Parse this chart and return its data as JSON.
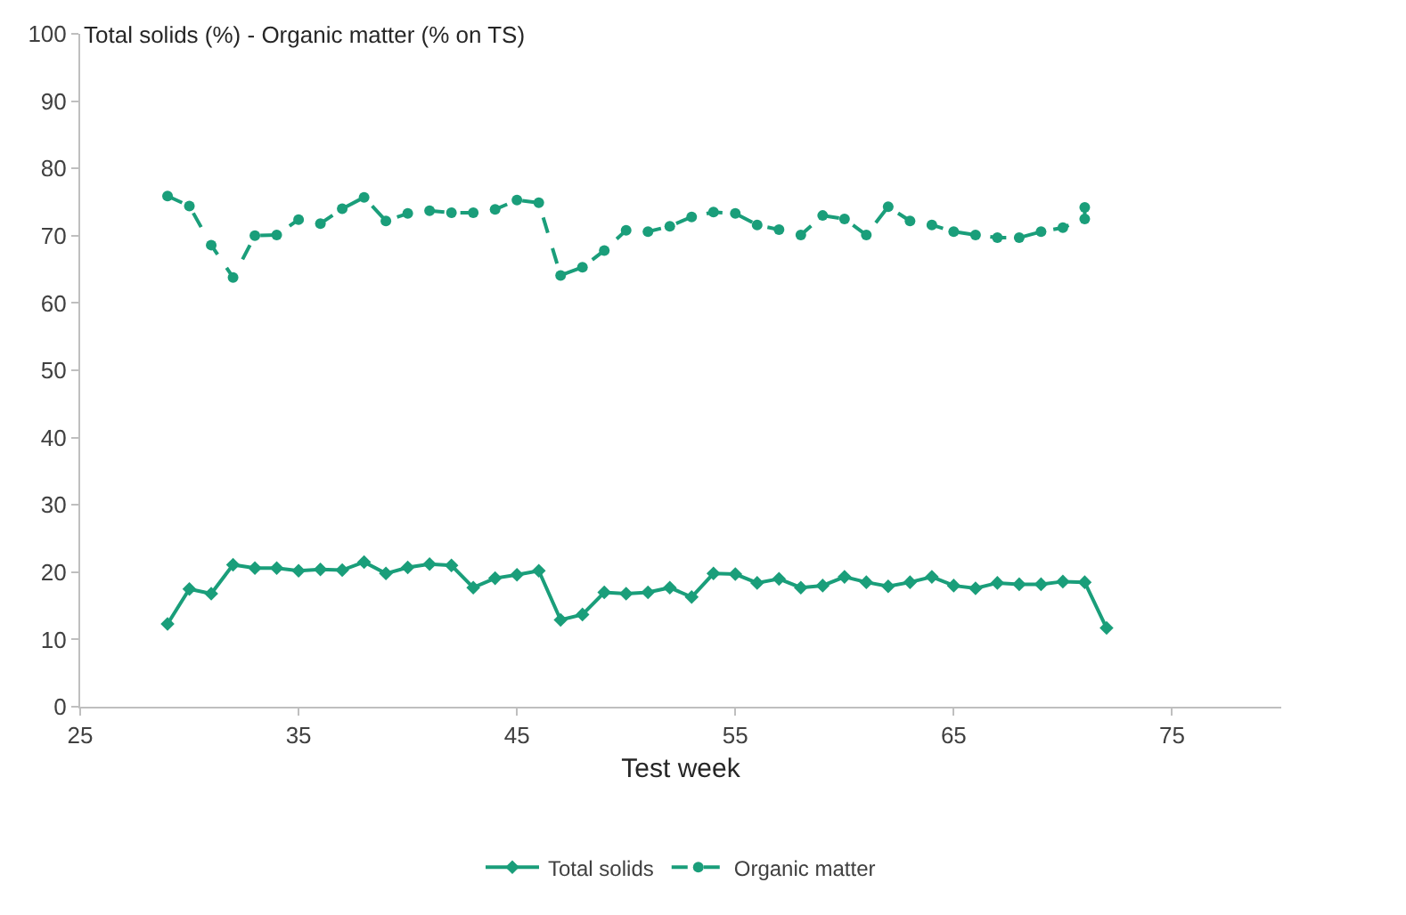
{
  "chart_data": {
    "type": "line",
    "ylabel": "Total solids (%) - Organic matter (% on TS)",
    "xlabel": "Test week",
    "xlim": [
      25,
      80
    ],
    "xticks": [
      25,
      35,
      45,
      55,
      65,
      75
    ],
    "ylim": [
      0,
      100
    ],
    "yticks": [
      0,
      10,
      20,
      30,
      40,
      50,
      60,
      70,
      80,
      90,
      100
    ],
    "grid": false,
    "legend": "bottom",
    "series": [
      {
        "name": "Total solids",
        "color": "#1a9e7a",
        "marker": "diamond",
        "line_style": "solid",
        "x": [
          29,
          30,
          31,
          32,
          33,
          34,
          35,
          36,
          37,
          38,
          39,
          40,
          41,
          42,
          43,
          44,
          45,
          46,
          47,
          48,
          49,
          50,
          51,
          52,
          53,
          54,
          55,
          56,
          57,
          58,
          59,
          60,
          61,
          62,
          63,
          64,
          65,
          66,
          67,
          68,
          69,
          70,
          71,
          72
        ],
        "values": [
          12.3,
          17.5,
          16.8,
          21.1,
          20.6,
          20.6,
          20.2,
          20.4,
          20.3,
          21.5,
          19.8,
          20.7,
          21.2,
          21.0,
          17.7,
          19.1,
          19.6,
          20.2,
          12.9,
          13.7,
          17.0,
          16.8,
          17.0,
          17.7,
          16.3,
          19.8,
          19.7,
          18.4,
          19.0,
          17.7,
          18.0,
          19.3,
          18.5,
          17.9,
          18.5,
          19.3,
          18.0,
          17.6,
          18.4,
          18.2,
          18.2,
          18.6,
          18.5,
          11.7
        ]
      },
      {
        "name": "Organic matter",
        "color": "#1a9e7a",
        "marker": "circle",
        "line_style": "dashed",
        "x": [
          29,
          30,
          31,
          32,
          33,
          34,
          35,
          36,
          37,
          38,
          39,
          40,
          41,
          42,
          43,
          44,
          45,
          46,
          47,
          48,
          49,
          50,
          51,
          52,
          53,
          54,
          55,
          56,
          57,
          58,
          59,
          60,
          61,
          62,
          63,
          64,
          65,
          66,
          67,
          68,
          69,
          70,
          71,
          71
        ],
        "values": [
          75.9,
          74.4,
          68.6,
          63.8,
          70.0,
          70.1,
          72.4,
          71.8,
          74.0,
          75.7,
          72.2,
          73.3,
          73.7,
          73.4,
          73.4,
          73.9,
          75.3,
          74.9,
          64.1,
          65.3,
          67.8,
          70.8,
          70.6,
          71.4,
          72.8,
          73.5,
          73.3,
          71.6,
          70.9,
          70.1,
          73.0,
          72.5,
          70.1,
          74.3,
          72.2,
          71.6,
          70.6,
          70.1,
          69.7,
          69.7,
          70.6,
          71.2,
          72.5,
          74.2
        ]
      }
    ]
  }
}
